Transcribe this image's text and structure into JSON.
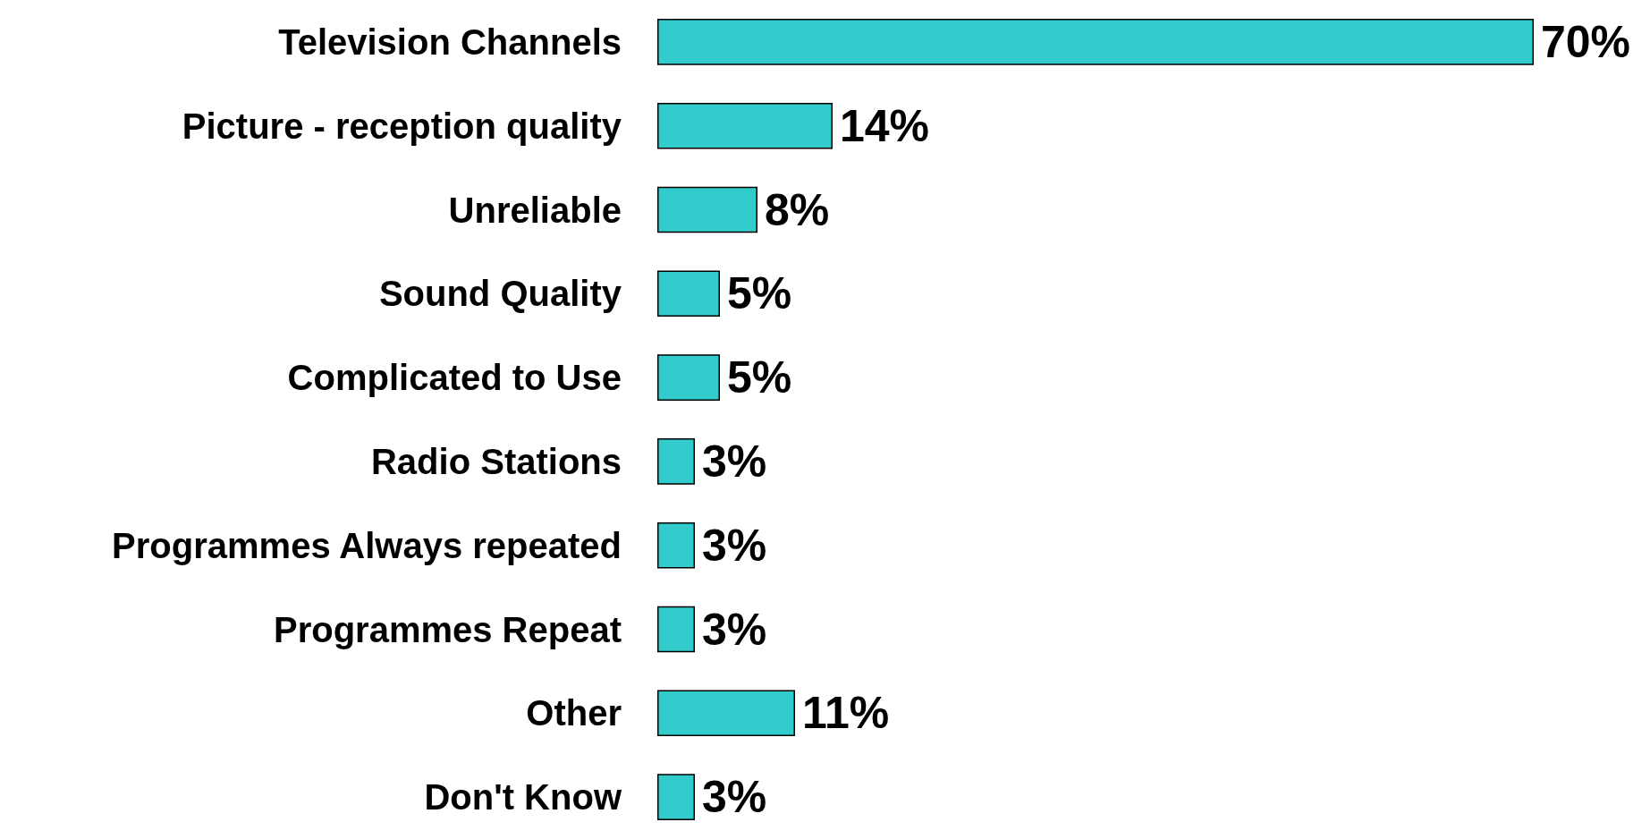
{
  "chart_data": {
    "type": "bar",
    "orientation": "horizontal",
    "categories": [
      "Television Channels",
      "Picture - reception quality",
      "Unreliable",
      "Sound Quality",
      "Complicated to Use",
      "Radio Stations",
      "Programmes Always repeated",
      "Programmes Repeat",
      "Other",
      "Don't Know"
    ],
    "values": [
      70,
      14,
      8,
      5,
      5,
      3,
      3,
      3,
      11,
      3
    ],
    "value_labels": [
      "70%",
      "14%",
      "8%",
      "5%",
      "5%",
      "3%",
      "3%",
      "3%",
      "11%",
      "3%"
    ],
    "color": "#33cccc"
  }
}
